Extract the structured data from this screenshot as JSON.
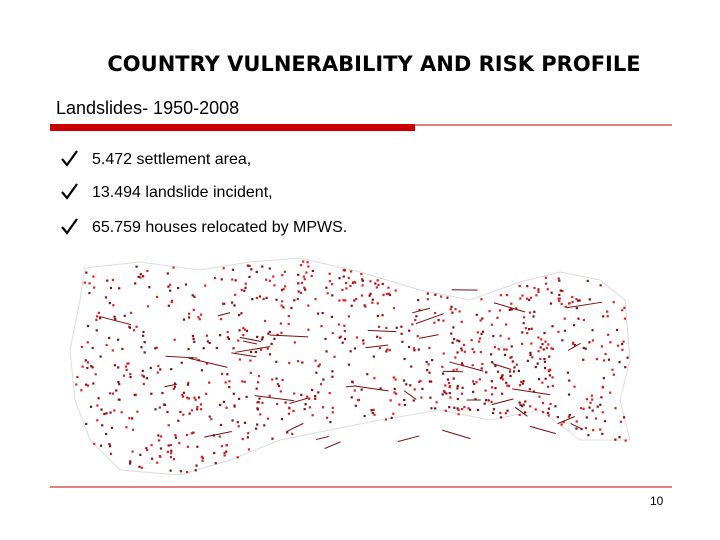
{
  "header": {
    "title": "COUNTRY VULNERABILITY AND RISK PROFILE",
    "subtitle": "Landslides- 1950-2008"
  },
  "bullets": [
    "5.472 settlement area,",
    "13.494 landslide incident,",
    "65.759 houses relocated by MPWS."
  ],
  "footer": {
    "page_number": "10"
  }
}
